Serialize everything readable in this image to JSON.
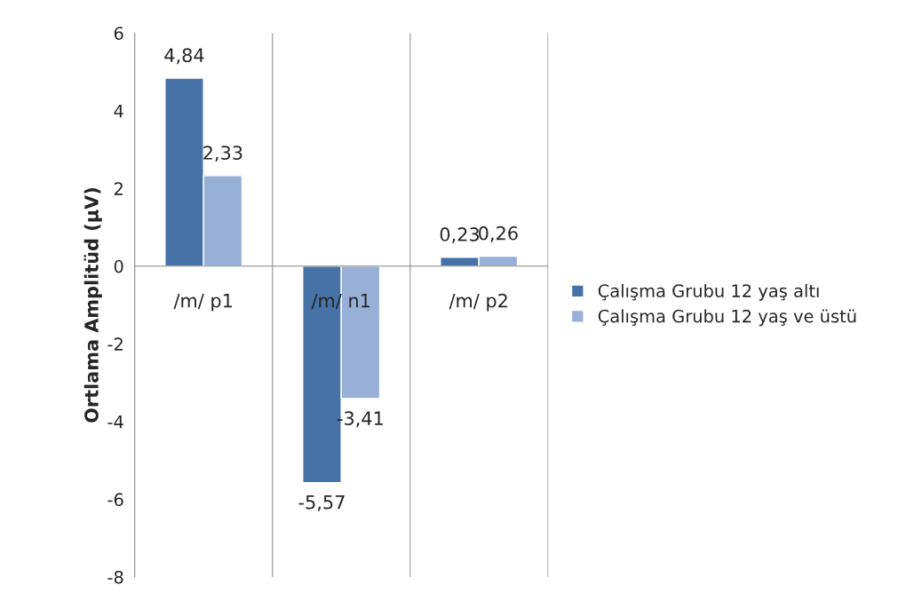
{
  "chart_data": {
    "type": "bar",
    "ylabel": "Ortlama Amplitüd (µV)",
    "categories": [
      "/m/ p1",
      "/m/ n1",
      "/m/ p2"
    ],
    "series": [
      {
        "name": "Çalışma Grubu 12 yaş altı",
        "color": "#4672a8",
        "values": [
          4.84,
          -5.57,
          0.23
        ],
        "value_labels": [
          "4,84",
          "-5,57",
          "0,23"
        ]
      },
      {
        "name": "Çalışma Grubu 12 yaş ve üstü",
        "color": "#98b0d8",
        "values": [
          2.33,
          -3.41,
          0.26
        ],
        "value_labels": [
          "2,33",
          "-3,41",
          "0,26"
        ]
      }
    ],
    "ylim": [
      -8,
      6
    ],
    "yticks": [
      -8,
      -6,
      -4,
      -2,
      0,
      2,
      4,
      6
    ],
    "grid": "x",
    "legend": "right"
  }
}
